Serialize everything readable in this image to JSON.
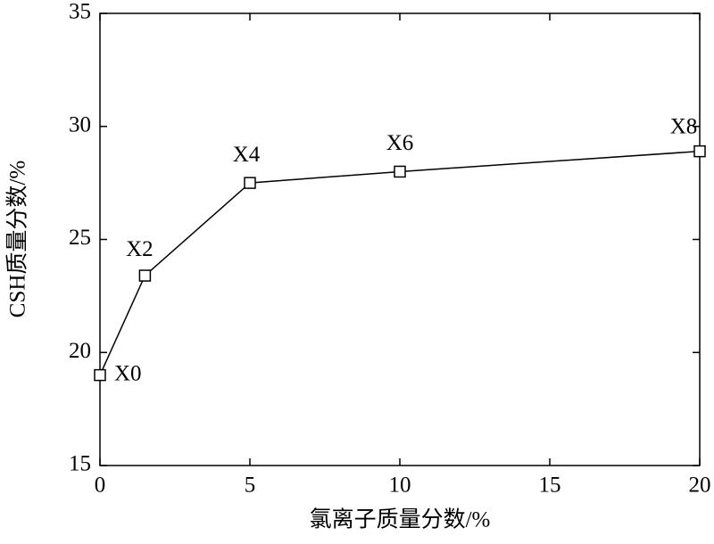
{
  "chart_data": {
    "type": "line",
    "x_label": "氯离子质量分数/%",
    "y_label": "CSH质量分数/%",
    "x": [
      0,
      1.5,
      5,
      10,
      20
    ],
    "series": [
      {
        "color": "#000000",
        "values": [
          19,
          23.4,
          27.5,
          28,
          28.9
        ]
      }
    ],
    "point_labels": [
      "X0",
      "X2",
      "X4",
      "X6",
      "X8"
    ],
    "xlim": [
      0,
      20
    ],
    "xticks": [
      0,
      5,
      10,
      15,
      20
    ],
    "ylim": [
      15,
      35
    ],
    "yticks": [
      15,
      20,
      25,
      30,
      35
    ],
    "grid": false
  }
}
